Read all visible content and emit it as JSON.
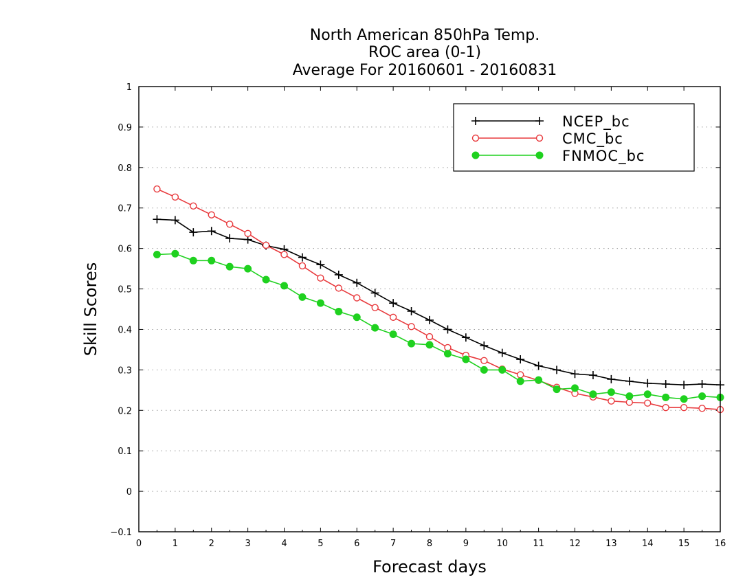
{
  "chart_data": {
    "type": "line",
    "title": [
      "North American 850hPa Temp.",
      "ROC area (0-1)",
      "Average For 20160601 - 20160831"
    ],
    "xlabel": "Forecast days",
    "ylabel": "Skill Scores",
    "xlim": [
      0,
      16
    ],
    "ylim": [
      -0.1,
      1
    ],
    "x_ticks": [
      "0",
      "1",
      "2",
      "3",
      "4",
      "5",
      "6",
      "7",
      "8",
      "9",
      "10",
      "11",
      "12",
      "13",
      "14",
      "15",
      "16"
    ],
    "y_ticks": [
      "−0.1",
      "0",
      "0.1",
      "0.2",
      "0.3",
      "0.4",
      "0.5",
      "0.6",
      "0.7",
      "0.8",
      "0.9",
      "1"
    ],
    "grid": true,
    "legend_position": "top-right",
    "x": [
      0.5,
      1,
      1.5,
      2,
      2.5,
      3,
      3.5,
      4,
      4.5,
      5,
      5.5,
      6,
      6.5,
      7,
      7.5,
      8,
      8.5,
      9,
      9.5,
      10,
      10.5,
      11,
      11.5,
      12,
      12.5,
      13,
      13.5,
      14,
      14.5,
      15,
      15.5,
      16
    ],
    "series": [
      {
        "name": "NCEP_bc",
        "color": "#000000",
        "marker": "plus",
        "values": [
          0.672,
          0.67,
          0.64,
          0.643,
          0.625,
          0.622,
          0.607,
          0.598,
          0.578,
          0.56,
          0.535,
          0.515,
          0.49,
          0.465,
          0.445,
          0.423,
          0.4,
          0.38,
          0.36,
          0.342,
          0.326,
          0.31,
          0.3,
          0.29,
          0.287,
          0.277,
          0.272,
          0.267,
          0.265,
          0.263,
          0.265,
          0.263
        ]
      },
      {
        "name": "CMC_bc",
        "color": "#e8393c",
        "marker": "open-circle",
        "values": [
          0.747,
          0.727,
          0.705,
          0.683,
          0.66,
          0.637,
          0.608,
          0.585,
          0.557,
          0.527,
          0.502,
          0.478,
          0.454,
          0.43,
          0.407,
          0.382,
          0.355,
          0.336,
          0.323,
          0.302,
          0.288,
          0.274,
          0.257,
          0.242,
          0.233,
          0.223,
          0.22,
          0.218,
          0.207,
          0.207,
          0.205,
          0.202
        ]
      },
      {
        "name": "FNMOC_bc",
        "color": "#1fd11f",
        "marker": "filled-circle",
        "values": [
          0.585,
          0.587,
          0.57,
          0.57,
          0.555,
          0.55,
          0.523,
          0.508,
          0.48,
          0.465,
          0.444,
          0.43,
          0.404,
          0.388,
          0.365,
          0.362,
          0.34,
          0.326,
          0.3,
          0.3,
          0.272,
          0.275,
          0.252,
          0.255,
          0.24,
          0.245,
          0.235,
          0.24,
          0.232,
          0.228,
          0.235,
          0.232
        ]
      }
    ]
  }
}
